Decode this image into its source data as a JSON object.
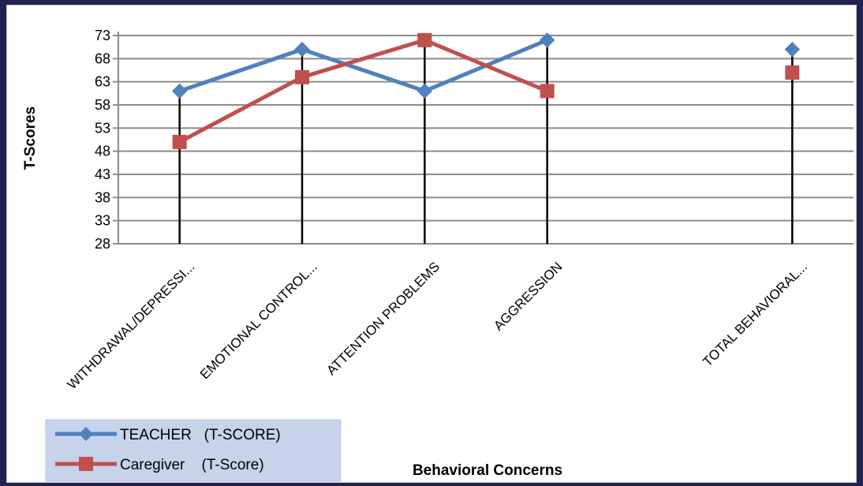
{
  "chart_data": {
    "type": "line",
    "categories": [
      "WITHDRAWAL/DEPRESSI...",
      "EMOTIONAL CONTROL...",
      "ATTENTION PROBLEMS",
      "AGGRESSION",
      "",
      "TOTAL BEHAVIORAL..."
    ],
    "series": [
      {
        "name": "TEACHER   (T-SCORE)",
        "color": "#4f81bd",
        "marker": "diamond",
        "values": [
          61,
          70,
          61,
          72,
          null,
          70
        ]
      },
      {
        "name": "Caregiver    (T-Score)",
        "color": "#c0504d",
        "marker": "square",
        "values": [
          50,
          64,
          72,
          61,
          null,
          65
        ]
      }
    ],
    "ylabel": "T-Scores",
    "xlabel": "Behavioral Concerns",
    "ylim": [
      28,
      73
    ],
    "yticks": [
      73,
      68,
      63,
      58,
      53,
      48,
      43,
      38,
      33,
      28
    ],
    "grid": true,
    "drop_lines": true,
    "legend_position": "bottom-left"
  }
}
